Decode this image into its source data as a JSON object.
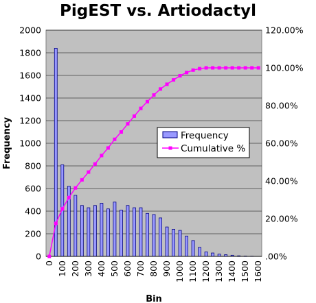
{
  "chart_data": {
    "type": "bar",
    "title": "PigEST vs. Artiodactyl",
    "xlabel": "Bin",
    "ylabel": "Frequency",
    "categories": [
      "0",
      "50",
      "100",
      "150",
      "200",
      "250",
      "300",
      "350",
      "400",
      "450",
      "500",
      "550",
      "600",
      "650",
      "700",
      "750",
      "800",
      "850",
      "900",
      "950",
      "1000",
      "1050",
      "1100",
      "1150",
      "1200",
      "1250",
      "1300",
      "1350",
      "1400",
      "1450",
      "1500",
      "1550",
      "1600"
    ],
    "x_tick_labels": [
      "0",
      "100",
      "200",
      "300",
      "400",
      "500",
      "600",
      "700",
      "800",
      "900",
      "1000",
      "1100",
      "1200",
      "1300",
      "1400",
      "1500",
      "1600"
    ],
    "ylim": [
      0,
      2000
    ],
    "y_ticks": [
      0,
      200,
      400,
      600,
      800,
      1000,
      1200,
      1400,
      1600,
      1800,
      2000
    ],
    "y2lim": [
      0,
      120
    ],
    "y2_tick_labels": [
      ".00%",
      "20.00%",
      "40.00%",
      "60.00%",
      "80.00%",
      "100.00%",
      "120.00%"
    ],
    "series": [
      {
        "name": "Frequency",
        "type": "bar",
        "axis": "left",
        "color": "#9999ff",
        "values": [
          0,
          1840,
          810,
          620,
          540,
          450,
          430,
          450,
          470,
          420,
          480,
          410,
          450,
          430,
          430,
          380,
          370,
          340,
          260,
          240,
          230,
          180,
          140,
          80,
          40,
          30,
          20,
          15,
          10,
          5,
          3,
          2,
          0
        ]
      },
      {
        "name": "Cumulative %",
        "type": "line",
        "axis": "right",
        "color": "#ff00ff",
        "values": [
          0,
          17.5,
          25.2,
          31.2,
          36.3,
          40.6,
          44.7,
          49.0,
          53.5,
          57.5,
          62.1,
          66.0,
          70.3,
          74.4,
          78.5,
          82.1,
          85.6,
          88.8,
          91.3,
          93.6,
          95.8,
          97.5,
          98.8,
          99.6,
          100.0,
          100.0,
          100.0,
          100.0,
          100.0,
          100.0,
          100.0,
          100.0,
          100.0
        ]
      }
    ],
    "legend": {
      "position": "right",
      "entries": [
        "Frequency",
        "Cumulative %"
      ]
    },
    "grid": true,
    "plot_background": "#c0c0c0"
  }
}
